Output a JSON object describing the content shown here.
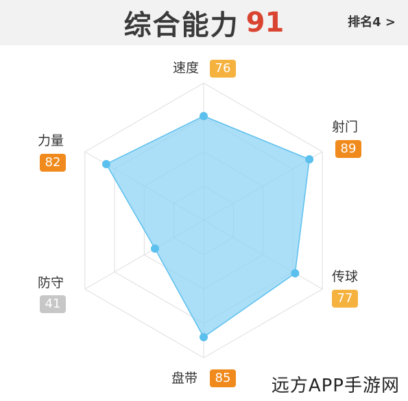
{
  "header": {
    "title": "综合能力",
    "score": "91",
    "rank": "排名4 >"
  },
  "chart_data": {
    "type": "radar",
    "max": 100,
    "grid_levels": 4,
    "fill_color": "#8fd3f4",
    "stroke_color": "#5bc0ee",
    "point_color": "#5bc0ee",
    "badge_colors": {
      "high": "#f08a1c",
      "mid": "#f5b23f",
      "low": "#c7c7c7"
    },
    "axes": [
      {
        "label": "速度",
        "value": 76,
        "level": "mid"
      },
      {
        "label": "射门",
        "value": 89,
        "level": "high"
      },
      {
        "label": "传球",
        "value": 77,
        "level": "mid"
      },
      {
        "label": "盘带",
        "value": 85,
        "level": "high"
      },
      {
        "label": "防守",
        "value": 41,
        "level": "low"
      },
      {
        "label": "力量",
        "value": 82,
        "level": "high"
      }
    ]
  },
  "watermark": "远方APP手游网"
}
